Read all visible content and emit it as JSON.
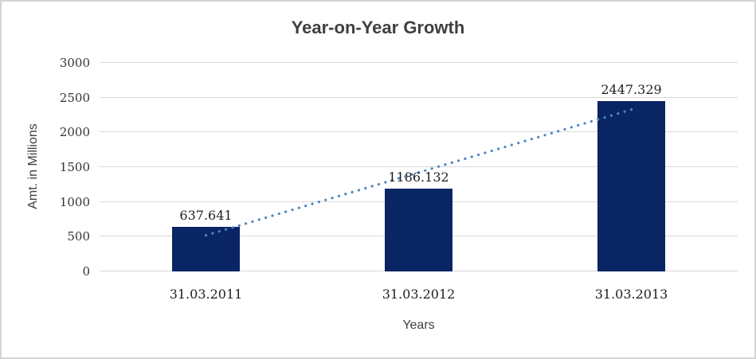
{
  "chart_data": {
    "type": "bar",
    "title": "Year-on-Year Growth",
    "categories": [
      "31.03.2011",
      "31.03.2012",
      "31.03.2013"
    ],
    "values": [
      637.641,
      1186.132,
      2447.329
    ],
    "value_labels": [
      "637.641",
      "1186.132",
      "2447.329"
    ],
    "xlabel": "Years",
    "ylabel": "Amt. in Millions",
    "ylim": [
      0,
      3000
    ],
    "yticks": [
      0,
      500,
      1000,
      1500,
      2000,
      2500,
      3000
    ],
    "grid": true,
    "legend": false,
    "bar_color": "#0a2563",
    "gridline_color": "#d9d9d9",
    "trendline": {
      "type": "linear",
      "style": "dotted",
      "color": "#4a86c6",
      "start_value": 519,
      "end_value": 2328
    }
  }
}
